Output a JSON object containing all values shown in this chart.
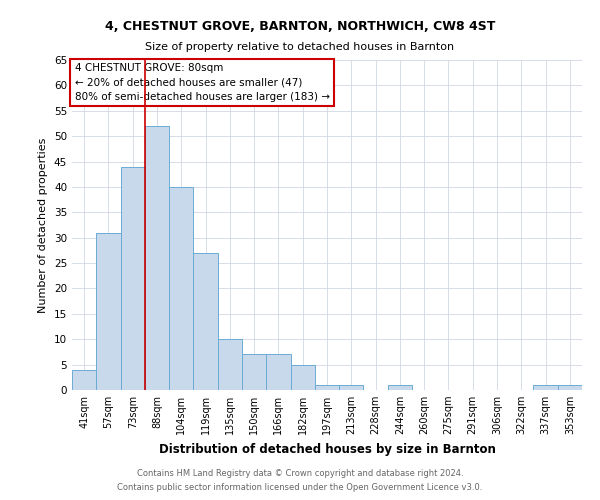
{
  "title": "4, CHESTNUT GROVE, BARNTON, NORTHWICH, CW8 4ST",
  "subtitle": "Size of property relative to detached houses in Barnton",
  "xlabel": "Distribution of detached houses by size in Barnton",
  "ylabel": "Number of detached properties",
  "bin_labels": [
    "41sqm",
    "57sqm",
    "73sqm",
    "88sqm",
    "104sqm",
    "119sqm",
    "135sqm",
    "150sqm",
    "166sqm",
    "182sqm",
    "197sqm",
    "213sqm",
    "228sqm",
    "244sqm",
    "260sqm",
    "275sqm",
    "291sqm",
    "306sqm",
    "322sqm",
    "337sqm",
    "353sqm"
  ],
  "bar_heights": [
    4,
    31,
    44,
    52,
    40,
    27,
    10,
    7,
    7,
    5,
    1,
    1,
    0,
    1,
    0,
    0,
    0,
    0,
    0,
    1,
    1
  ],
  "bar_color": "#c8d9ec",
  "bar_edge_color": "#6aacd6",
  "grid_color": "#d0d8e4",
  "red_line_x": 2.5,
  "annotation_text": "4 CHESTNUT GROVE: 80sqm\n← 20% of detached houses are smaller (47)\n80% of semi-detached houses are larger (183) →",
  "annotation_box_color": "#ffffff",
  "annotation_box_edge_color": "#cc0000",
  "ylim": [
    0,
    65
  ],
  "yticks": [
    0,
    5,
    10,
    15,
    20,
    25,
    30,
    35,
    40,
    45,
    50,
    55,
    60,
    65
  ],
  "footer_line1": "Contains HM Land Registry data © Crown copyright and database right 2024.",
  "footer_line2": "Contains public sector information licensed under the Open Government Licence v3.0.",
  "background_color": "#ffffff",
  "fig_width": 6.0,
  "fig_height": 5.0
}
